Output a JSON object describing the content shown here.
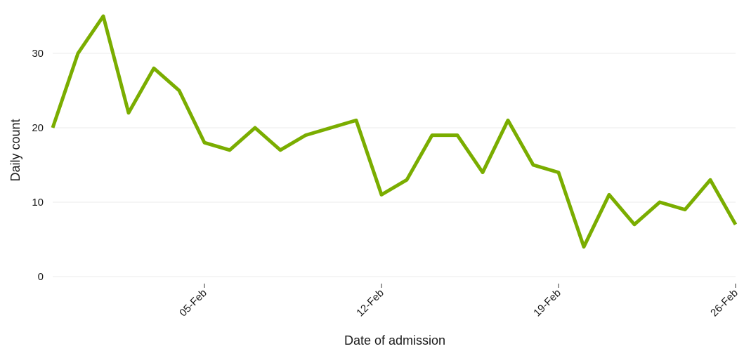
{
  "chart_data": {
    "type": "line",
    "title": "",
    "xlabel": "Date of admission",
    "ylabel": "Daily count",
    "x_tick_labels": [
      "05-Feb",
      "12-Feb",
      "19-Feb",
      "26-Feb"
    ],
    "y_tick_labels": [
      "0",
      "10",
      "20",
      "30"
    ],
    "ylim": [
      -2,
      36
    ],
    "xlim": [
      "30-Jan",
      "26-Feb"
    ],
    "grid": "horizontal",
    "legend": "none",
    "line_color": "#7aad00",
    "x": [
      "30-Jan",
      "31-Jan",
      "01-Feb",
      "02-Feb",
      "03-Feb",
      "04-Feb",
      "05-Feb",
      "06-Feb",
      "07-Feb",
      "08-Feb",
      "09-Feb",
      "10-Feb",
      "11-Feb",
      "12-Feb",
      "13-Feb",
      "14-Feb",
      "15-Feb",
      "16-Feb",
      "17-Feb",
      "18-Feb",
      "19-Feb",
      "20-Feb",
      "21-Feb",
      "22-Feb",
      "23-Feb",
      "24-Feb",
      "25-Feb",
      "26-Feb"
    ],
    "values": [
      20,
      30,
      35,
      22,
      28,
      25,
      18,
      17,
      20,
      17,
      19,
      20,
      21,
      11,
      13,
      19,
      19,
      14,
      21,
      15,
      14,
      4,
      11,
      7,
      10,
      9,
      13,
      7
    ]
  }
}
